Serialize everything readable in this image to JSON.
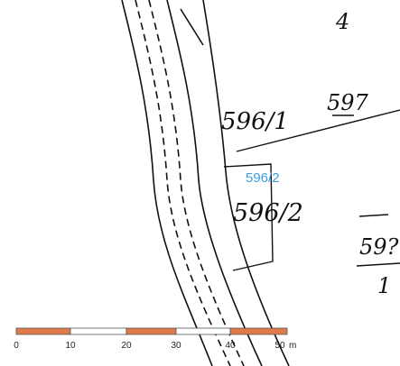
{
  "map": {
    "parcels": [
      {
        "label": "4"
      },
      {
        "label": "597"
      },
      {
        "label": "596/1"
      },
      {
        "label": "596/2"
      },
      {
        "label": "59?"
      },
      {
        "label": "1"
      }
    ],
    "selected_parcel": "596/2",
    "scale": {
      "labels": [
        "0",
        "10",
        "20",
        "30",
        "40",
        "50"
      ],
      "unit": "m"
    }
  }
}
